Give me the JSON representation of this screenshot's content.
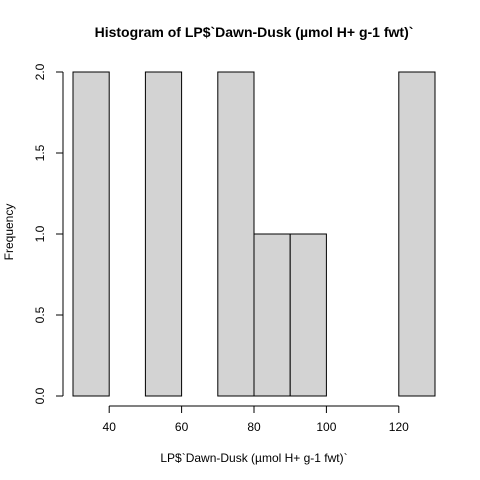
{
  "chart_data": {
    "type": "bar",
    "title": "Histogram of LP$`Dawn-Dusk (µmol H+ g-1 fwt)`",
    "xlabel": "LP$`Dawn-Dusk (µmol H+ g-1 fwt)`",
    "ylabel": "Frequency",
    "bin_edges": [
      30,
      40,
      50,
      60,
      70,
      80,
      90,
      100,
      110,
      120,
      130
    ],
    "counts": [
      2,
      0,
      2,
      0,
      2,
      1,
      1,
      0,
      0,
      2
    ],
    "xlim": [
      30,
      130
    ],
    "ylim": [
      0,
      2
    ],
    "x_ticks": [
      40,
      60,
      80,
      100,
      120
    ],
    "y_ticks": [
      "0.0",
      "0.5",
      "1.0",
      "1.5",
      "2.0"
    ],
    "bar_color": "#d3d3d3",
    "grid": false
  }
}
